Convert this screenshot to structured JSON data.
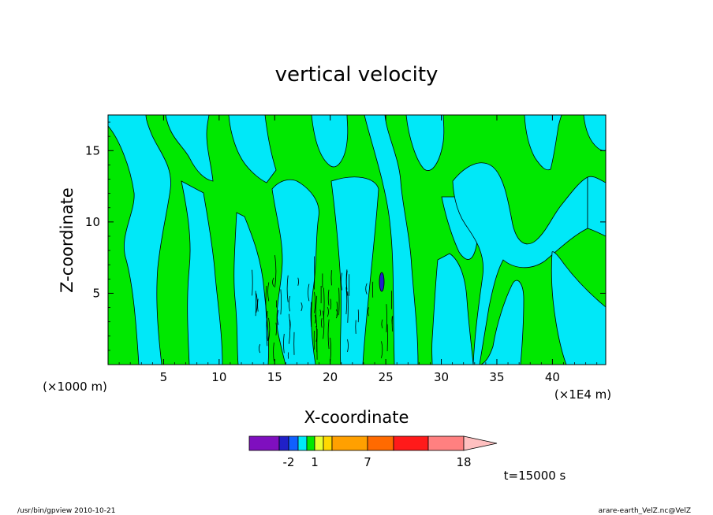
{
  "chart_data": {
    "type": "heatmap",
    "title": "vertical velocity",
    "xlabel": "X-coordinate",
    "ylabel": "Z-coordinate",
    "x_unit_left": "(×1000 m)",
    "x_unit_right": "(×1E4 m)",
    "xlim": [
      0,
      44.8
    ],
    "ylim": [
      0,
      17.5
    ],
    "x_ticks": [
      "5",
      "10",
      "15",
      "20",
      "25",
      "30",
      "35",
      "40"
    ],
    "x_tick_values": [
      5,
      10,
      15,
      20,
      25,
      30,
      35,
      40
    ],
    "y_ticks": [
      "5",
      "10",
      "15"
    ],
    "y_tick_values": [
      5,
      10,
      15
    ],
    "time_label": "t=15000 s",
    "colorbar": {
      "labels": [
        "-2",
        "1",
        "7",
        "18"
      ],
      "colors": [
        "#7f0fbf",
        "#2020c8",
        "#1060ff",
        "#00e8f8",
        "#00e800",
        "#e8ff30",
        "#ffd800",
        "#ffa000",
        "#ff6a00",
        "#ff1a1a",
        "#ff8080",
        "#ffc0c0"
      ]
    },
    "dominant_levels": [
      {
        "name": "negative",
        "color": "#00e8f8"
      },
      {
        "name": "positive",
        "color": "#00e800"
      }
    ]
  },
  "footer": {
    "left": "/usr/bin/gpview   2010-10-21",
    "right": "arare-earth_VelZ.nc@VelZ"
  }
}
